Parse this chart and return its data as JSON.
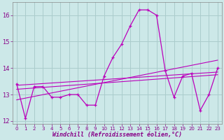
{
  "xlabel": "Windchill (Refroidissement éolien,°C)",
  "background_color": "#cce8e8",
  "grid_color": "#aacccc",
  "line_color": "#bb00bb",
  "x_values": [
    0,
    1,
    2,
    3,
    4,
    5,
    6,
    7,
    8,
    9,
    10,
    11,
    12,
    13,
    14,
    15,
    16,
    17,
    18,
    19,
    20,
    21,
    22,
    23
  ],
  "main_line": [
    13.4,
    12.1,
    13.3,
    13.3,
    12.9,
    12.9,
    13.0,
    13.0,
    12.6,
    12.6,
    13.7,
    14.4,
    14.9,
    15.6,
    16.2,
    16.2,
    16.0,
    13.9,
    12.9,
    13.7,
    13.8,
    12.4,
    13.0,
    14.0
  ],
  "reg_line1_start": 13.35,
  "reg_line1_end": 13.85,
  "reg_line2_start": 13.2,
  "reg_line2_end": 13.75,
  "reg_line3_start": 12.8,
  "reg_line3_end": 14.3,
  "ylim": [
    11.9,
    16.5
  ],
  "xlim": [
    -0.5,
    23.5
  ],
  "yticks": [
    12,
    13,
    14,
    15,
    16
  ],
  "xticks": [
    0,
    1,
    2,
    3,
    4,
    5,
    6,
    7,
    8,
    9,
    10,
    11,
    12,
    13,
    14,
    15,
    16,
    17,
    18,
    19,
    20,
    21,
    22,
    23
  ]
}
